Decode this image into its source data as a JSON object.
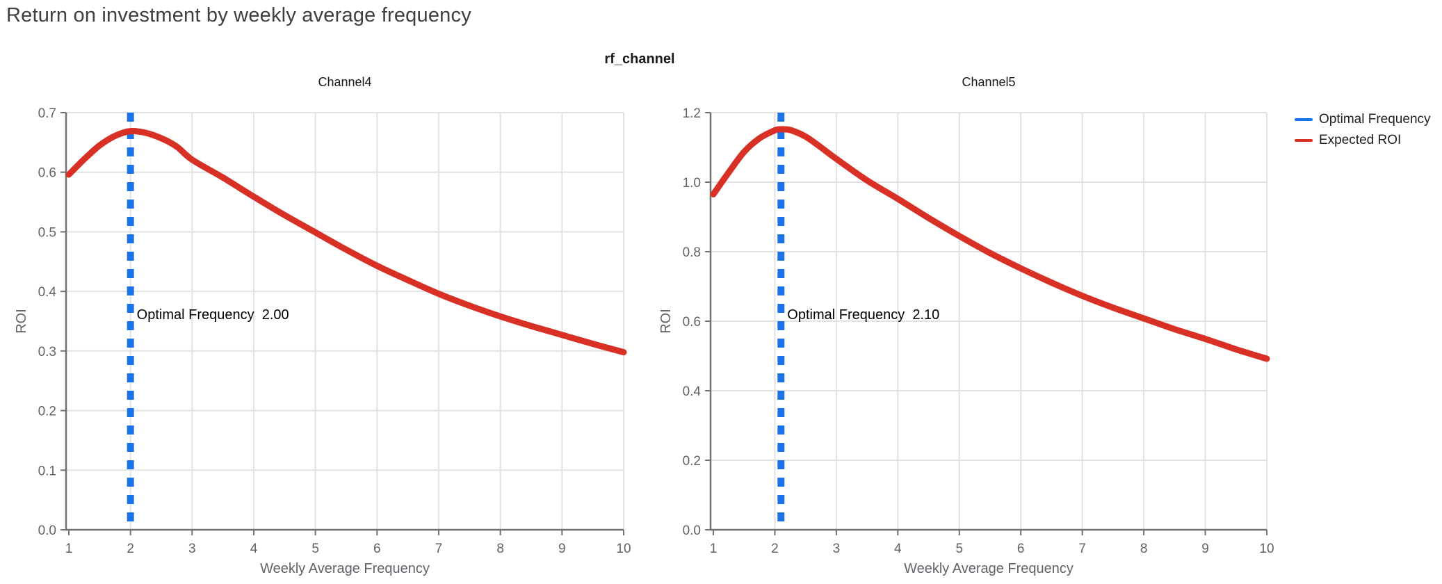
{
  "page_title": "Return on investment by weekly average frequency",
  "facet_title": "rf_channel",
  "legend": {
    "items": [
      {
        "label": "Optimal Frequency",
        "color": "#1a73e8"
      },
      {
        "label": "Expected ROI",
        "color": "#d93025"
      }
    ]
  },
  "colors": {
    "roi_line": "#d93025",
    "optimal_line": "#1a73e8",
    "grid": "#e2e2e2",
    "axis": "#6e7276",
    "tick_label": "#5f6368",
    "axis_title": "#5f6368",
    "subplot_title": "#1a1a1a",
    "annotation_text": "#000000"
  },
  "chart_data": [
    {
      "type": "line",
      "title": "Channel4",
      "xlabel": "Weekly Average Frequency",
      "ylabel": "ROI",
      "xlim": [
        1,
        10
      ],
      "ylim": [
        0,
        0.7
      ],
      "xticks": [
        1,
        2,
        3,
        4,
        5,
        6,
        7,
        8,
        9,
        10
      ],
      "xtick_labels": [
        "1",
        "2",
        "3",
        "4",
        "5",
        "6",
        "7",
        "8",
        "9",
        "10"
      ],
      "yticks": [
        0,
        0.1,
        0.2,
        0.3,
        0.4,
        0.5,
        0.6,
        0.7
      ],
      "ytick_labels": [
        "0.0",
        "0.1",
        "0.2",
        "0.3",
        "0.4",
        "0.5",
        "0.6",
        "0.7"
      ],
      "grid": true,
      "optimal_frequency": 2.0,
      "annotation": "Optimal Frequency  2.00",
      "series": [
        {
          "name": "Expected ROI",
          "x": [
            1,
            1.25,
            1.5,
            1.75,
            2,
            2.25,
            2.5,
            2.75,
            3,
            3.5,
            4,
            4.5,
            5,
            5.5,
            6,
            6.5,
            7,
            7.5,
            8,
            8.5,
            9,
            9.5,
            10
          ],
          "y": [
            0.596,
            0.622,
            0.645,
            0.661,
            0.669,
            0.666,
            0.657,
            0.643,
            0.621,
            0.591,
            0.559,
            0.528,
            0.499,
            0.47,
            0.443,
            0.419,
            0.396,
            0.376,
            0.358,
            0.342,
            0.327,
            0.312,
            0.298
          ]
        }
      ]
    },
    {
      "type": "line",
      "title": "Channel5",
      "xlabel": "Weekly Average Frequency",
      "ylabel": "ROI",
      "xlim": [
        1,
        10
      ],
      "ylim": [
        0,
        1.2
      ],
      "xticks": [
        1,
        2,
        3,
        4,
        5,
        6,
        7,
        8,
        9,
        10
      ],
      "xtick_labels": [
        "1",
        "2",
        "3",
        "4",
        "5",
        "6",
        "7",
        "8",
        "9",
        "10"
      ],
      "yticks": [
        0,
        0.2,
        0.4,
        0.6,
        0.8,
        1.0,
        1.2
      ],
      "ytick_labels": [
        "0.0",
        "0.2",
        "0.4",
        "0.6",
        "0.8",
        "1.0",
        "1.2"
      ],
      "grid": true,
      "optimal_frequency": 2.1,
      "annotation": "Optimal Frequency  2.10",
      "series": [
        {
          "name": "Expected ROI",
          "x": [
            1,
            1.25,
            1.5,
            1.75,
            2,
            2.1,
            2.25,
            2.5,
            2.75,
            3,
            3.5,
            4,
            4.5,
            5,
            5.5,
            6,
            6.5,
            7,
            7.5,
            8,
            8.5,
            9,
            9.5,
            10
          ],
          "y": [
            0.965,
            1.028,
            1.087,
            1.126,
            1.149,
            1.152,
            1.15,
            1.131,
            1.1,
            1.067,
            1.005,
            0.952,
            0.897,
            0.845,
            0.796,
            0.752,
            0.711,
            0.673,
            0.639,
            0.608,
            0.577,
            0.549,
            0.519,
            0.492
          ]
        }
      ]
    }
  ]
}
